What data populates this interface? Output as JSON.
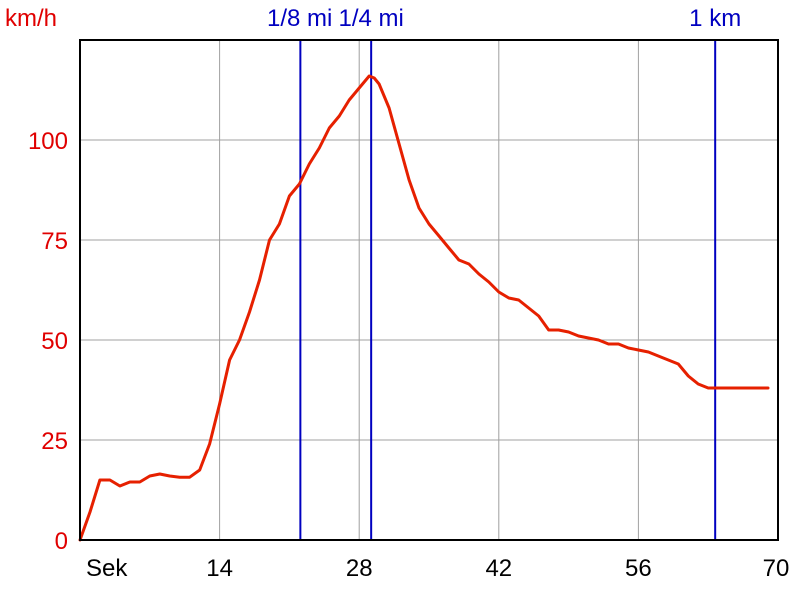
{
  "chart_data": {
    "type": "line",
    "ylabel": "km/h",
    "xlabel": "Sek",
    "xlim": [
      0,
      70
    ],
    "ylim": [
      0,
      125
    ],
    "grid": true,
    "x_ticks": [
      14,
      28,
      42,
      56,
      70
    ],
    "y_ticks": [
      0,
      25,
      50,
      75,
      100
    ],
    "colors": {
      "line": "#e62000",
      "markers": "#0000c0",
      "axis_labels": "#e00000",
      "grid": "#a0a0a0"
    },
    "markers": [
      {
        "label": "1/8 mi",
        "x": 22.1
      },
      {
        "label": "1/4 mi",
        "x": 29.2
      },
      {
        "label": "1 km",
        "x": 63.7
      }
    ],
    "series": [
      {
        "x": [
          0,
          1,
          2,
          3,
          4,
          5,
          6,
          7,
          8,
          9,
          10,
          11,
          12,
          13,
          14,
          15,
          16,
          17,
          18,
          19,
          20,
          21,
          22,
          23,
          24,
          25,
          26,
          27,
          28,
          29,
          29.5,
          30,
          31,
          32,
          33,
          34,
          35,
          36,
          37,
          38,
          39,
          40,
          41,
          42,
          43,
          44,
          45,
          46,
          47,
          48,
          49,
          50,
          51,
          52,
          53,
          54,
          55,
          56,
          57,
          58,
          59,
          60,
          61,
          62,
          63,
          64,
          65,
          66,
          67,
          68,
          69
        ],
        "values": [
          0,
          7,
          15,
          15,
          13.5,
          14.5,
          14.5,
          16,
          16.5,
          16,
          15.7,
          15.7,
          17.5,
          24,
          34,
          45,
          50,
          57,
          65,
          75,
          79,
          86,
          89,
          94,
          98,
          103,
          106,
          110,
          113,
          116,
          115.5,
          114,
          108,
          99,
          90,
          83,
          79,
          76,
          73,
          70,
          69,
          66.5,
          64.5,
          62,
          60.5,
          60,
          58,
          56,
          52.5,
          52.5,
          52,
          51,
          50.5,
          50,
          49,
          49,
          48,
          47.5,
          47,
          46,
          45,
          44,
          41,
          39,
          38,
          38,
          38,
          38,
          38,
          38,
          38
        ]
      }
    ]
  }
}
